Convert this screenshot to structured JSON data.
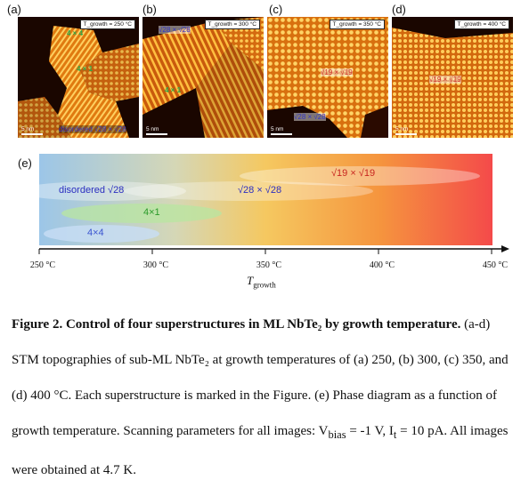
{
  "panels": [
    {
      "letter": "(a)",
      "tag": "T_growth = 250 °C",
      "scale": "5 nm"
    },
    {
      "letter": "(b)",
      "tag": "T_growth = 300 °C",
      "scale": "5 nm"
    },
    {
      "letter": "(c)",
      "tag": "T_growth = 350 °C",
      "scale": "5 nm"
    },
    {
      "letter": "(d)",
      "tag": "T_growth = 400 °C",
      "scale": "5 nm"
    }
  ],
  "overlays": {
    "a_4x4": "4 × 4",
    "a_4x1": "4 × 1",
    "a_disordered": "disordered √28 × √28",
    "b_sqrt28": "√28 × √28",
    "b_4x1": "4 × 1",
    "c_sqrt19": "√19 × √19",
    "c_sqrt28": "√28 × √28",
    "d_sqrt19": "√19 × √19"
  },
  "diagram": {
    "letter": "(e)",
    "phases": [
      {
        "name": "√19 × √19",
        "color": "#c8251f"
      },
      {
        "name": "disordered √28",
        "color": "#2b2ec0"
      },
      {
        "name": "√28 × √28",
        "color": "#2b2ec0"
      },
      {
        "name": "4×1",
        "color": "#2a9a2a"
      },
      {
        "name": "4×4",
        "color": "#3a54d0"
      }
    ],
    "ticks": [
      "250 °C",
      "300 °C",
      "350 °C",
      "400 °C",
      "450 °C"
    ],
    "axis_main": "T",
    "axis_sub": "growth"
  },
  "caption": {
    "bold": "Figure 2. Control of four superstructures in ML NbTe₂ by growth temperature.",
    "text": " (a-d) STM topographies of sub-ML NbTe₂ at growth temperatures of (a) 250, (b) 300, (c) 350, and (d) 400 °C. Each superstructure is marked in the Figure. (e) Phase diagram as a function of growth temperature. Scanning parameters for all images: V",
    "vsub": "bias",
    "mid": " = -1 V, I",
    "isub": "t",
    "end": " = 10 pA. All images were obtained at 4.7 K."
  }
}
